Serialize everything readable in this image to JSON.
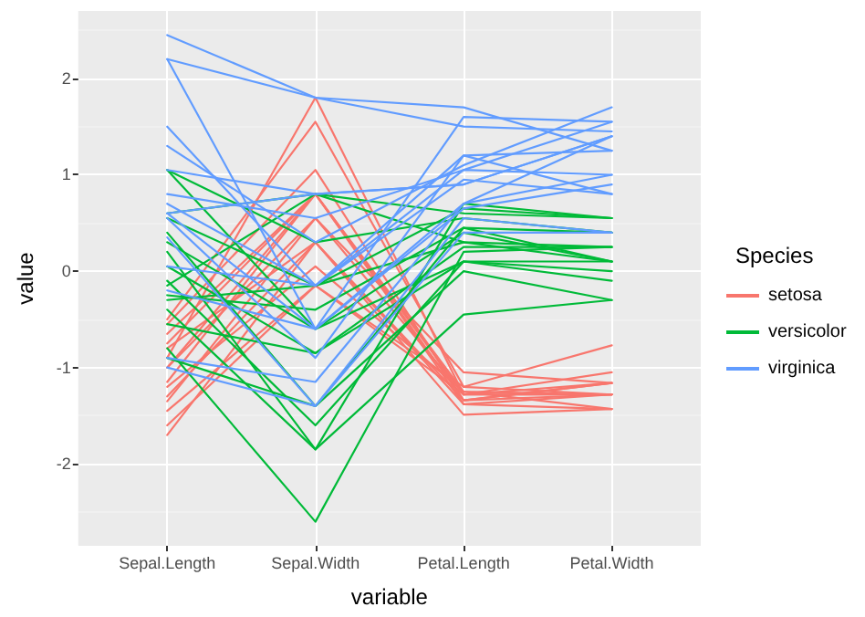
{
  "chart_data": {
    "type": "line",
    "xlabel": "variable",
    "ylabel": "value",
    "legend_title": "Species",
    "categories": [
      "Sepal.Length",
      "Sepal.Width",
      "Petal.Length",
      "Petal.Width"
    ],
    "ylim": [
      -2.85,
      2.7
    ],
    "yticks": [
      -2,
      -1,
      0,
      1,
      2
    ],
    "grid": true,
    "legend": "right",
    "marker": "none",
    "series": [
      {
        "name": "setosa",
        "color": "#f8766d",
        "values": [
          -0.9,
          1.8,
          -1.28,
          -1.16
        ]
      },
      {
        "color": "#f8766d",
        "values": [
          -0.5,
          1.55,
          -1.2,
          -1.28
        ]
      },
      {
        "color": "#f8766d",
        "values": [
          -0.55,
          1.05,
          -1.34,
          -1.28
        ]
      },
      {
        "color": "#f8766d",
        "values": [
          -1.0,
          0.8,
          -1.28,
          -1.05
        ]
      },
      {
        "color": "#f8766d",
        "values": [
          -0.75,
          0.8,
          -1.38,
          -1.28
        ]
      },
      {
        "color": "#f8766d",
        "values": [
          -1.15,
          0.8,
          -1.25,
          -1.43
        ]
      },
      {
        "color": "#f8766d",
        "values": [
          -1.3,
          0.3,
          -1.34,
          -1.16
        ]
      },
      {
        "color": "#f8766d",
        "values": [
          -1.7,
          0.3,
          -1.49,
          -1.43
        ]
      },
      {
        "color": "#f8766d",
        "values": [
          -1.6,
          -0.15,
          -1.28,
          -1.28
        ]
      },
      {
        "color": "#f8766d",
        "values": [
          -1.45,
          -0.15,
          -1.2,
          -0.77
        ]
      },
      {
        "color": "#f8766d",
        "values": [
          -1.0,
          0.55,
          -1.05,
          -1.16
        ]
      },
      {
        "color": "#f8766d",
        "values": [
          -0.8,
          0.3,
          -1.38,
          -1.43
        ]
      },
      {
        "color": "#f8766d",
        "values": [
          -1.2,
          0.05,
          -1.25,
          -1.28
        ]
      },
      {
        "color": "#f8766d",
        "values": [
          -0.65,
          0.8,
          -1.34,
          -1.16
        ]
      },
      {
        "color": "#f8766d",
        "values": [
          -1.35,
          0.55,
          -1.28,
          -1.28
        ]
      },
      {
        "name": "versicolor",
        "color": "#00ba38",
        "values": [
          1.05,
          0.3,
          0.55,
          0.4
        ]
      },
      {
        "color": "#00ba38",
        "values": [
          1.05,
          -0.6,
          0.4,
          0.1
        ]
      },
      {
        "color": "#00ba38",
        "values": [
          0.6,
          0.8,
          0.3,
          0.25
        ]
      },
      {
        "color": "#00ba38",
        "values": [
          0.55,
          -0.15,
          0.65,
          0.55
        ]
      },
      {
        "color": "#00ba38",
        "values": [
          0.4,
          -1.4,
          0.45,
          0.1
        ]
      },
      {
        "color": "#00ba38",
        "values": [
          0.3,
          -0.6,
          0.1,
          0.0
        ]
      },
      {
        "color": "#00ba38",
        "values": [
          0.05,
          -0.85,
          0.25,
          0.25
        ]
      },
      {
        "color": "#00ba38",
        "values": [
          -0.1,
          -1.6,
          0.1,
          -0.1
        ]
      },
      {
        "color": "#00ba38",
        "values": [
          -0.15,
          0.8,
          0.6,
          0.55
        ]
      },
      {
        "color": "#00ba38",
        "values": [
          -0.3,
          -0.15,
          0.3,
          0.1
        ]
      },
      {
        "color": "#00ba38",
        "values": [
          -0.4,
          -1.85,
          -0.45,
          -0.3
        ]
      },
      {
        "color": "#00ba38",
        "values": [
          -0.55,
          -0.85,
          0.1,
          0.1
        ]
      },
      {
        "color": "#00ba38",
        "values": [
          -0.8,
          -2.6,
          0.2,
          0.25
        ]
      },
      {
        "color": "#00ba38",
        "values": [
          -0.9,
          -1.4,
          0.0,
          -0.3
        ]
      },
      {
        "color": "#00ba38",
        "values": [
          -0.25,
          -0.4,
          0.45,
          0.4
        ]
      },
      {
        "color": "#00ba38",
        "values": [
          0.2,
          -1.85,
          0.7,
          0.55
        ]
      },
      {
        "name": "virginica",
        "color": "#619cff",
        "values": [
          2.45,
          1.8,
          1.5,
          1.45
        ]
      },
      {
        "color": "#619cff",
        "values": [
          2.2,
          1.8,
          1.7,
          1.25
        ]
      },
      {
        "color": "#619cff",
        "values": [
          2.2,
          -0.6,
          1.6,
          1.55
        ]
      },
      {
        "color": "#619cff",
        "values": [
          1.5,
          -0.15,
          1.2,
          0.8
        ]
      },
      {
        "color": "#619cff",
        "values": [
          1.3,
          0.3,
          1.1,
          1.7
        ]
      },
      {
        "color": "#619cff",
        "values": [
          1.05,
          0.8,
          0.9,
          1.4
        ]
      },
      {
        "color": "#619cff",
        "values": [
          0.8,
          0.55,
          1.05,
          1.55
        ]
      },
      {
        "color": "#619cff",
        "values": [
          0.7,
          -0.15,
          0.95,
          0.8
        ]
      },
      {
        "color": "#619cff",
        "values": [
          0.6,
          0.8,
          0.9,
          1.4
        ]
      },
      {
        "color": "#619cff",
        "values": [
          0.6,
          -0.6,
          0.7,
          1.0
        ]
      },
      {
        "color": "#619cff",
        "values": [
          0.35,
          -1.4,
          0.55,
          0.4
        ]
      },
      {
        "color": "#619cff",
        "values": [
          0.05,
          -0.15,
          1.05,
          1.0
        ]
      },
      {
        "color": "#619cff",
        "values": [
          -0.2,
          -0.6,
          0.65,
          0.9
        ]
      },
      {
        "color": "#619cff",
        "values": [
          -0.9,
          -1.15,
          0.7,
          1.4
        ]
      },
      {
        "color": "#619cff",
        "values": [
          -1.0,
          -1.4,
          0.4,
          0.4
        ]
      },
      {
        "color": "#619cff",
        "values": [
          0.55,
          -0.9,
          1.2,
          1.25
        ]
      }
    ]
  }
}
